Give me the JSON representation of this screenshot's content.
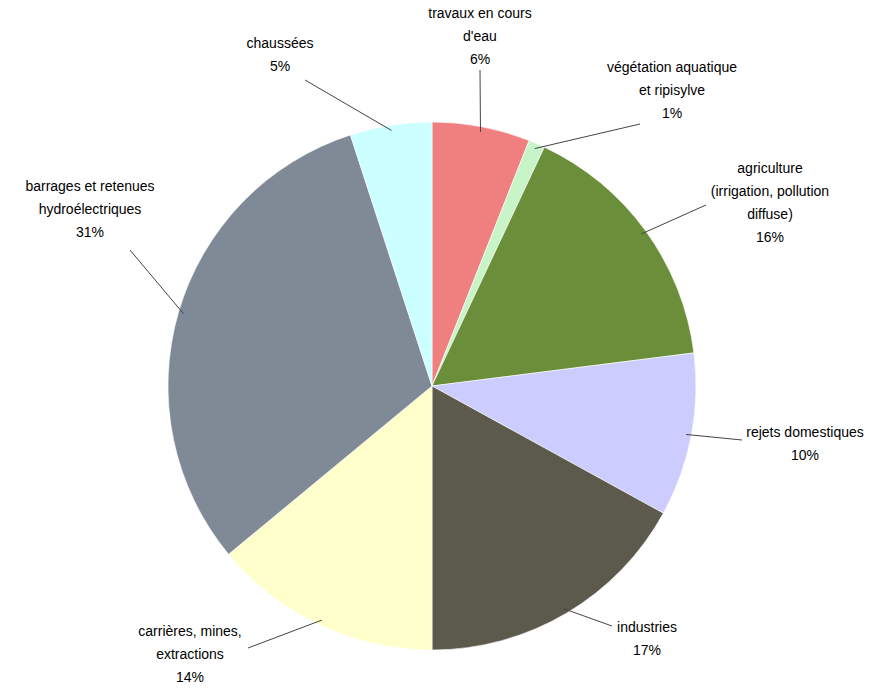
{
  "chart_data": {
    "type": "pie",
    "categories": [
      "travaux en cours d'eau",
      "végétation aquatique et ripisylve",
      "agriculture (irrigation, pollution diffuse)",
      "rejets domestiques",
      "industries",
      "carrières, mines, extractions",
      "barrages et retenues hydroélectriques",
      "chaussées"
    ],
    "values": [
      6,
      1,
      16,
      10,
      17,
      14,
      31,
      5
    ],
    "value_labels": [
      "6%",
      "1%",
      "16%",
      "10%",
      "17%",
      "14%",
      "31%",
      "5%"
    ],
    "colors": [
      "#f08080",
      "#c8f5c8",
      "#6b8e3a",
      "#ccccff",
      "#5b5a4c",
      "#ffffcc",
      "#7f8a96",
      "#ccffff"
    ],
    "data_labels": true
  }
}
